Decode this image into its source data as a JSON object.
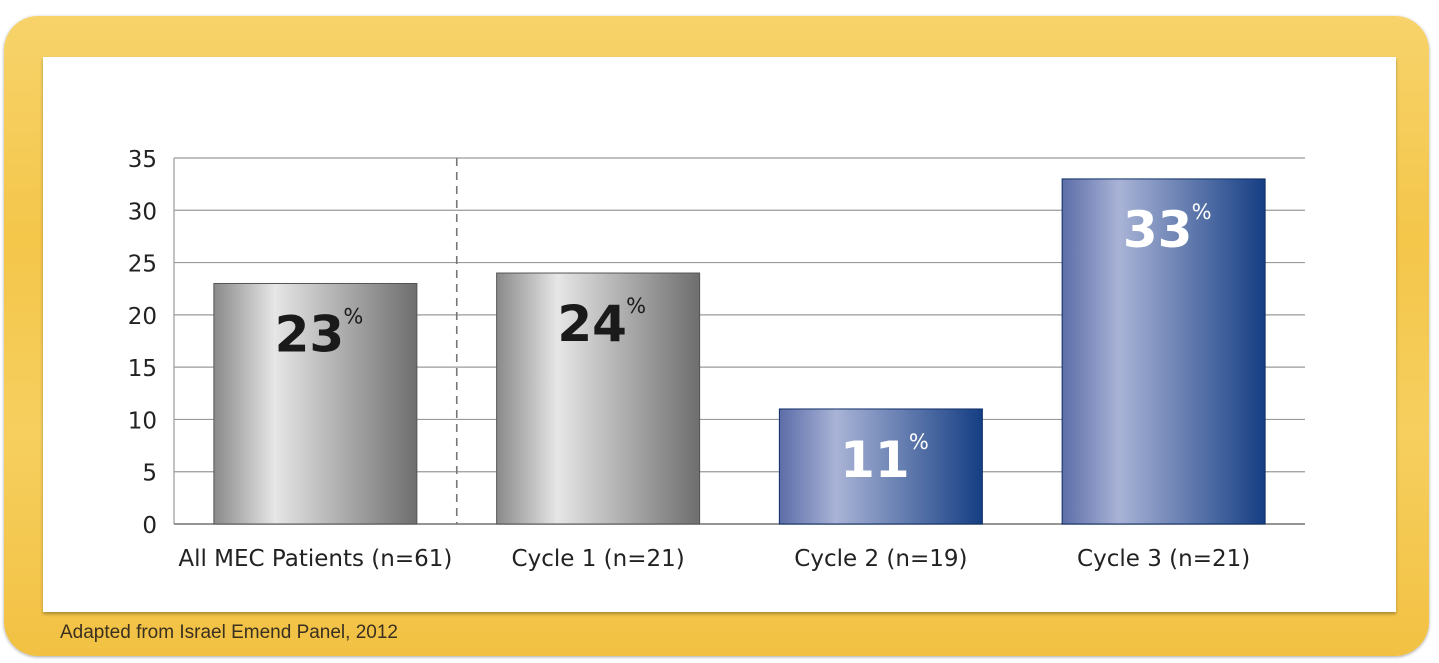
{
  "source_note": "Adapted from Israel Emend Panel, 2012",
  "chart_data": {
    "type": "bar",
    "categories": [
      "All MEC Patients (n=61)",
      "Cycle 1 (n=21)",
      "Cycle 2 (n=19)",
      "Cycle 3 (n=21)"
    ],
    "values": [
      23,
      24,
      11,
      33
    ],
    "value_labels": [
      "23",
      "24",
      "11",
      "33"
    ],
    "value_suffix": "%",
    "title": "",
    "xlabel": "",
    "ylabel": "",
    "ylim": [
      0,
      35
    ],
    "yticks": [
      "0",
      "5",
      "10",
      "15",
      "20",
      "25",
      "30",
      "35"
    ],
    "grid": true,
    "legend": "none",
    "colors": {
      "gray_light": "#e6e6e6",
      "gray_dark": "#6e6e6e",
      "blue_light": "#a9b3d6",
      "blue_dark": "#153e83",
      "label_dark": "#1a1a1a",
      "label_light": "#ffffff"
    }
  }
}
